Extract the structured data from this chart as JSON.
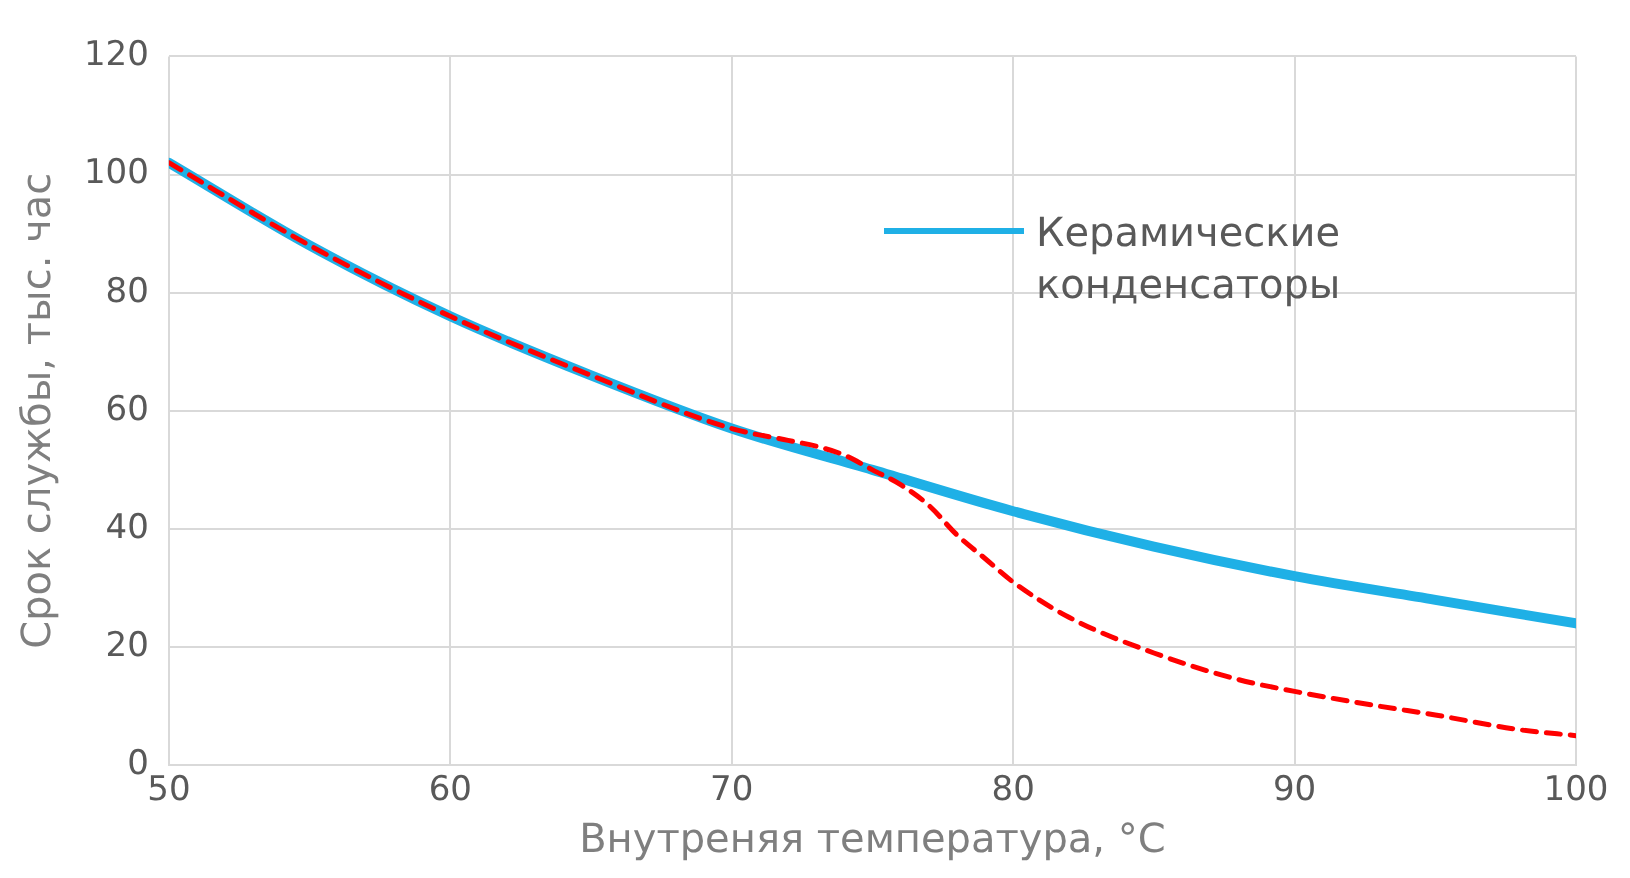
{
  "chart_data": {
    "type": "line",
    "xlabel": "Внутреняя температура, °C",
    "ylabel": "Срок службы, тыс. час",
    "x": [
      50,
      55,
      60,
      65,
      70,
      75,
      80,
      85,
      90,
      95,
      100
    ],
    "series": [
      {
        "name": "Керамические конденсаторы",
        "color": "#1fb0e6",
        "line_style": "solid",
        "values": [
          102,
          88,
          76,
          66,
          57,
          50,
          43,
          37,
          32,
          28,
          24
        ]
      },
      {
        "color": "#ff0000",
        "line_style": "dashed",
        "x": [
          50,
          55,
          60,
          65,
          70,
          72,
          73,
          74,
          75,
          76,
          77,
          78,
          79,
          80,
          82,
          85,
          88,
          90,
          93,
          95,
          98,
          100
        ],
        "values": [
          102,
          88,
          76,
          66,
          57,
          55,
          54,
          52.5,
          50,
          47.5,
          44,
          39,
          35,
          31,
          25,
          19,
          14.5,
          12.5,
          10,
          8.5,
          6,
          5
        ]
      }
    ],
    "xlim": [
      50,
      100
    ],
    "xticks": [
      50,
      60,
      70,
      80,
      90,
      100
    ],
    "ylim": [
      0,
      120
    ],
    "yticks": [
      0,
      20,
      40,
      60,
      80,
      100,
      120
    ],
    "grid": true,
    "legend": "top right",
    "marker": "none"
  }
}
